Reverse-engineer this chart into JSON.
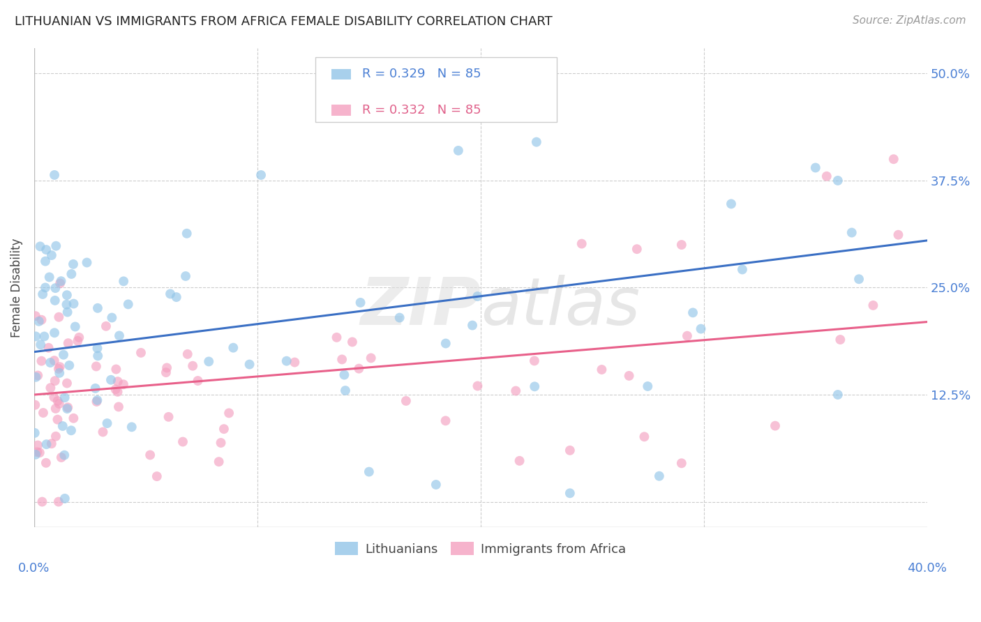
{
  "title": "LITHUANIAN VS IMMIGRANTS FROM AFRICA FEMALE DISABILITY CORRELATION CHART",
  "source": "Source: ZipAtlas.com",
  "ylabel": "Female Disability",
  "ytick_labels": [
    "",
    "12.5%",
    "25.0%",
    "37.5%",
    "50.0%"
  ],
  "ytick_vals": [
    0.0,
    0.125,
    0.25,
    0.375,
    0.5
  ],
  "xlim": [
    0.0,
    0.4
  ],
  "ylim": [
    -0.03,
    0.53
  ],
  "blue_R": 0.329,
  "blue_N": 85,
  "pink_R": 0.332,
  "pink_N": 85,
  "blue_color": "#93c5e8",
  "pink_color": "#f4a0c0",
  "blue_line_color": "#3a6fc4",
  "pink_line_color": "#e8608a",
  "legend_label_blue": "Lithuanians",
  "legend_label_pink": "Immigrants from Africa",
  "blue_line_x0": 0.0,
  "blue_line_y0": 0.175,
  "blue_line_x1": 0.4,
  "blue_line_y1": 0.305,
  "pink_line_x0": 0.0,
  "pink_line_y0": 0.125,
  "pink_line_x1": 0.4,
  "pink_line_y1": 0.21,
  "watermark": "ZIPatlas",
  "title_fontsize": 13,
  "source_fontsize": 11,
  "tick_fontsize": 13,
  "ylabel_fontsize": 12,
  "legend_fontsize": 13
}
